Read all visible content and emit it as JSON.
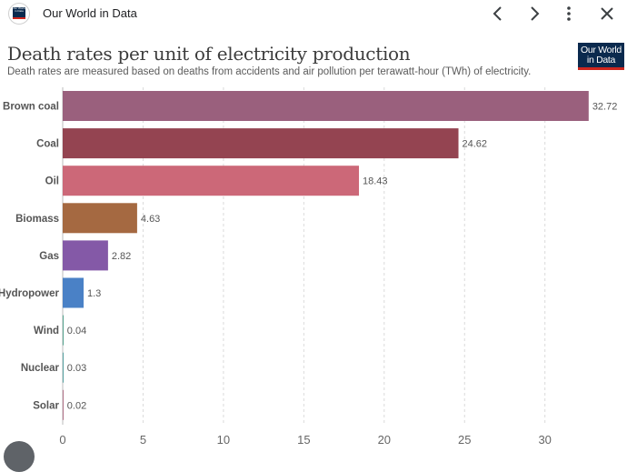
{
  "topbar": {
    "site_name": "Our World in Data",
    "favicon_text": "Our World in Data",
    "back_icon": "chevron-left-icon",
    "forward_icon": "chevron-right-icon",
    "menu_icon": "more-vert-icon",
    "close_icon": "close-icon"
  },
  "logo": {
    "line1": "Our World",
    "line2": "in Data"
  },
  "chart_data": {
    "type": "bar",
    "orientation": "horizontal",
    "title": "Death rates per unit of electricity production",
    "subtitle": "Death rates are measured based on deaths from accidents and air pollution per terawatt-hour (TWh) of electricity.",
    "categories": [
      "Brown coal",
      "Coal",
      "Oil",
      "Biomass",
      "Gas",
      "Hydropower",
      "Wind",
      "Nuclear",
      "Solar"
    ],
    "values": [
      32.72,
      24.62,
      18.43,
      4.63,
      2.82,
      1.3,
      0.04,
      0.03,
      0.02
    ],
    "value_labels": [
      "32.72",
      "24.62",
      "18.43",
      "4.63",
      "2.82",
      "1.3",
      "0.04",
      "0.03",
      "0.02"
    ],
    "colors": [
      "#9a607d",
      "#944451",
      "#cc6878",
      "#a56941",
      "#8459a7",
      "#4a81c6",
      "#2e8e74",
      "#2f8c8c",
      "#a0516d"
    ],
    "xlim": [
      0,
      33.5
    ],
    "xticks": [
      0,
      5,
      10,
      15,
      20,
      25,
      30
    ],
    "xtick_labels": [
      "0",
      "5",
      "10",
      "15",
      "20",
      "25",
      "30"
    ],
    "grid": "vertical dashed"
  }
}
